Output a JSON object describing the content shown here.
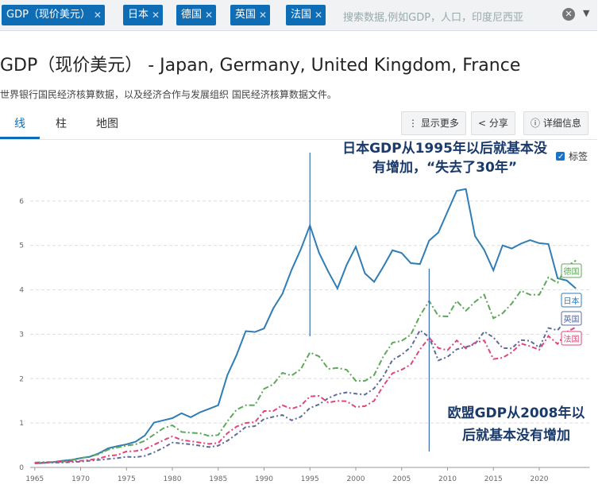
{
  "filters": [
    "GDP（现价美元）",
    "日本",
    "德国",
    "英国",
    "法国"
  ],
  "search_placeholder": "搜索数据,例如GDP，人口，印度尼西亚",
  "title": "GDP（现价美元） - Japan, Germany, United Kingdom, France",
  "subtitle": "世界银行国民经济核算数据，以及经济合作与发展组织 国民经济核算数据文件。",
  "tabs": [
    "线",
    "柱",
    "地图"
  ],
  "buttons": [
    "显示更多",
    "分享",
    "详细信息"
  ],
  "chart_data": {
    "type": "line",
    "legend_label": "标签",
    "x": [
      1965,
      1966,
      1967,
      1968,
      1969,
      1970,
      1971,
      1972,
      1973,
      1974,
      1975,
      1976,
      1977,
      1978,
      1979,
      1980,
      1981,
      1982,
      1983,
      1984,
      1985,
      1986,
      1987,
      1988,
      1989,
      1990,
      1991,
      1992,
      1993,
      1994,
      1995,
      1996,
      1997,
      1998,
      1999,
      2000,
      2001,
      2002,
      2003,
      2004,
      2005,
      2006,
      2007,
      2008,
      2009,
      2010,
      2011,
      2012,
      2013,
      2014,
      2015,
      2016,
      2017,
      2018,
      2019,
      2020,
      2021,
      2022,
      2023,
      2024
    ],
    "series": [
      {
        "name": "日本",
        "color": "#2f7db4",
        "values": [
          0.09,
          0.1,
          0.12,
          0.15,
          0.17,
          0.21,
          0.24,
          0.32,
          0.43,
          0.48,
          0.52,
          0.58,
          0.72,
          1.01,
          1.06,
          1.11,
          1.22,
          1.13,
          1.24,
          1.32,
          1.4,
          2.08,
          2.53,
          3.07,
          3.05,
          3.13,
          3.58,
          3.91,
          4.45,
          4.91,
          5.45,
          4.83,
          4.41,
          4.03,
          4.56,
          4.97,
          4.37,
          4.18,
          4.52,
          4.89,
          4.83,
          4.6,
          4.58,
          5.11,
          5.29,
          5.76,
          6.23,
          6.27,
          5.21,
          4.9,
          4.44,
          5.0,
          4.93,
          5.04,
          5.12,
          5.05,
          5.03,
          4.26,
          4.21,
          4.03
        ]
      },
      {
        "name": "德国",
        "color": "#5fa85a",
        "values": [
          0.11,
          0.12,
          0.12,
          0.13,
          0.16,
          0.21,
          0.25,
          0.3,
          0.4,
          0.45,
          0.49,
          0.52,
          0.6,
          0.74,
          0.88,
          0.95,
          0.8,
          0.78,
          0.77,
          0.71,
          0.73,
          1.04,
          1.3,
          1.4,
          1.4,
          1.77,
          1.87,
          2.13,
          2.07,
          2.21,
          2.59,
          2.5,
          2.22,
          2.24,
          2.2,
          1.95,
          1.95,
          2.08,
          2.5,
          2.81,
          2.85,
          2.99,
          3.42,
          3.75,
          3.41,
          3.4,
          3.75,
          3.53,
          3.73,
          3.89,
          3.36,
          3.47,
          3.69,
          3.98,
          3.89,
          3.89,
          4.28,
          4.16,
          4.53,
          4.66
        ]
      },
      {
        "name": "英国",
        "color": "#5c6b9c",
        "values": [
          0.1,
          0.11,
          0.11,
          0.11,
          0.12,
          0.13,
          0.15,
          0.17,
          0.19,
          0.21,
          0.24,
          0.23,
          0.26,
          0.34,
          0.44,
          0.56,
          0.54,
          0.52,
          0.49,
          0.46,
          0.49,
          0.6,
          0.75,
          0.91,
          0.93,
          1.09,
          1.14,
          1.18,
          1.06,
          1.14,
          1.34,
          1.42,
          1.56,
          1.65,
          1.69,
          1.66,
          1.64,
          1.78,
          2.05,
          2.42,
          2.54,
          2.71,
          3.09,
          2.93,
          2.41,
          2.49,
          2.66,
          2.71,
          2.78,
          3.06,
          2.93,
          2.69,
          2.68,
          2.87,
          2.85,
          2.7,
          3.14,
          3.09,
          3.34,
          3.3
        ]
      },
      {
        "name": "法国",
        "color": "#e0457b",
        "values": [
          0.1,
          0.11,
          0.12,
          0.13,
          0.14,
          0.15,
          0.17,
          0.2,
          0.26,
          0.28,
          0.36,
          0.37,
          0.41,
          0.51,
          0.61,
          0.7,
          0.62,
          0.59,
          0.56,
          0.53,
          0.55,
          0.77,
          0.92,
          1.0,
          1.02,
          1.27,
          1.27,
          1.4,
          1.32,
          1.39,
          1.6,
          1.61,
          1.46,
          1.5,
          1.49,
          1.36,
          1.38,
          1.5,
          1.84,
          2.12,
          2.2,
          2.32,
          2.66,
          2.92,
          2.69,
          2.64,
          2.86,
          2.68,
          2.81,
          2.86,
          2.44,
          2.47,
          2.59,
          2.79,
          2.73,
          2.65,
          2.96,
          2.78,
          3.05,
          3.16
        ]
      }
    ],
    "xlim": [
      1964.5,
      2025.5
    ],
    "xticks": [
      1965,
      1970,
      1975,
      1980,
      1985,
      1990,
      1995,
      2000,
      2005,
      2010,
      2015,
      2020
    ],
    "ylim": [
      0,
      7
    ],
    "yticks": [
      0,
      1,
      2,
      3,
      4,
      5,
      6
    ],
    "grid": true,
    "annotations": [
      {
        "x": 1995,
        "lines": [
          "日本GDP从1995年以后就基本没",
          "有增加，“失去了30年”"
        ]
      },
      {
        "x": 2008,
        "lines": [
          "欧盟GDP从2008年以",
          "后就基本没有增加"
        ]
      }
    ]
  }
}
